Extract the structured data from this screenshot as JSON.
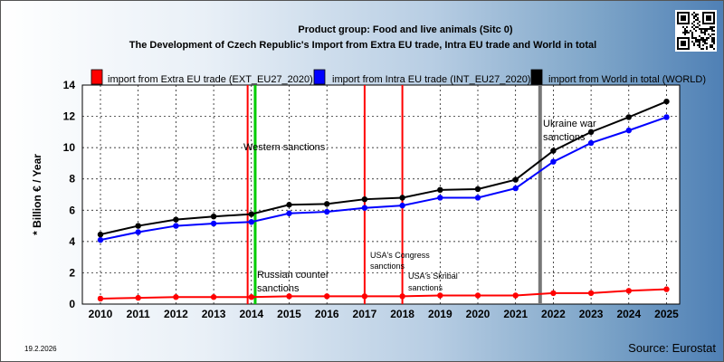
{
  "chart_data": {
    "type": "line",
    "title": "Product group: Food and live animals (Sitc 0)",
    "subtitle": "The Development of Czech Republic's Import from Extra EU trade, Intra EU trade and World in total",
    "ylabel": "* Billion € / Year",
    "ylim": [
      0,
      14
    ],
    "yticks": [
      0,
      2,
      4,
      6,
      8,
      10,
      12,
      14
    ],
    "x": [
      "2010",
      "2011",
      "2012",
      "2013",
      "2014",
      "2015",
      "2016",
      "2017",
      "2018",
      "2019",
      "2020",
      "2021",
      "2022",
      "2023",
      "2024",
      "2025"
    ],
    "grid": true,
    "legend_position": "top",
    "series": [
      {
        "name": "import from Extra EU trade (EXT_EU27_2020)",
        "color": "#ff0000",
        "values": [
          0.35,
          0.4,
          0.45,
          0.45,
          0.45,
          0.5,
          0.5,
          0.5,
          0.5,
          0.55,
          0.55,
          0.55,
          0.7,
          0.7,
          0.85,
          0.95
        ]
      },
      {
        "name": "import from Intra EU trade (INT_EU27_2020)",
        "color": "#0000ff",
        "values": [
          4.1,
          4.6,
          5.0,
          5.15,
          5.25,
          5.8,
          5.9,
          6.15,
          6.3,
          6.8,
          6.8,
          7.4,
          9.1,
          10.3,
          11.1,
          11.95
        ]
      },
      {
        "name": "import from World in total (WORLD)",
        "color": "#000000",
        "values": [
          4.45,
          5.0,
          5.4,
          5.6,
          5.75,
          6.35,
          6.4,
          6.7,
          6.8,
          7.3,
          7.35,
          7.95,
          9.8,
          11.0,
          11.95,
          12.95
        ]
      }
    ],
    "events": [
      {
        "id": "western",
        "x": 2013.9,
        "color": "#ff0000",
        "label": "Western sanctions"
      },
      {
        "id": "russian",
        "x": 2014.1,
        "color": "#00cc00",
        "label": "Russian counter sanctions"
      },
      {
        "id": "congress",
        "x": 2017.0,
        "color": "#ff0000",
        "label": "USA's Congress sanctions"
      },
      {
        "id": "skripal",
        "x": 2018.0,
        "color": "#ff0000",
        "label": "USA's Skribal sanctions"
      },
      {
        "id": "ukraine",
        "x": 2021.65,
        "color": "#777777",
        "label": "Ukraine war sanctions"
      }
    ],
    "date": "19.2.2026",
    "source": "Source: Eurostat"
  }
}
